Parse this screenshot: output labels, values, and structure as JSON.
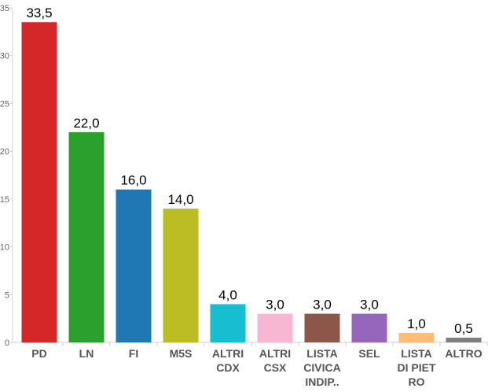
{
  "chart_data": {
    "type": "bar",
    "categories": [
      [
        "PD"
      ],
      [
        "LN"
      ],
      [
        "FI"
      ],
      [
        "M5S"
      ],
      [
        "ALTRI",
        "CDX"
      ],
      [
        "ALTRI",
        "CSX"
      ],
      [
        "LISTA",
        "CIVICA",
        "INDIP.."
      ],
      [
        "SEL"
      ],
      [
        "LISTA",
        "DI PIET",
        "RO"
      ],
      [
        "ALTRO"
      ]
    ],
    "values": [
      33.5,
      22.0,
      16.0,
      14.0,
      4.0,
      3.0,
      3.0,
      3.0,
      1.0,
      0.5
    ],
    "value_labels": [
      "33,5",
      "22,0",
      "16,0",
      "14,0",
      "4,0",
      "3,0",
      "3,0",
      "3,0",
      "1,0",
      "0,5"
    ],
    "colors": [
      "#d62728",
      "#2ca02c",
      "#1f77b4",
      "#bcbd22",
      "#17becf",
      "#f7b6d2",
      "#8c564b",
      "#9467bd",
      "#ffbb78",
      "#7f7f7f"
    ],
    "y_ticks": [
      0,
      5,
      10,
      15,
      20,
      25,
      30,
      35
    ],
    "ylim": [
      0,
      35
    ],
    "grid": false,
    "legend": "none",
    "title": "",
    "xlabel": "",
    "ylabel": ""
  }
}
